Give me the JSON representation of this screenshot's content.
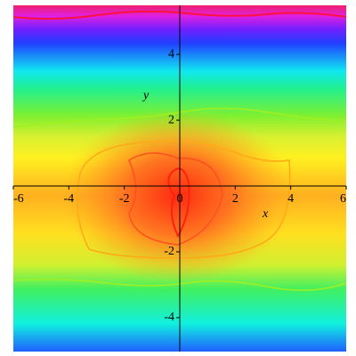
{
  "chart_data": {
    "type": "density",
    "x_label": "x",
    "y_label": "y",
    "xlim": [
      -6,
      6
    ],
    "ylim": [
      -5.03,
      5.49
    ],
    "xticks": [
      -6,
      -4,
      -2,
      0,
      2,
      4,
      6
    ],
    "yticks": [
      -4,
      -2,
      2,
      4
    ]
  }
}
